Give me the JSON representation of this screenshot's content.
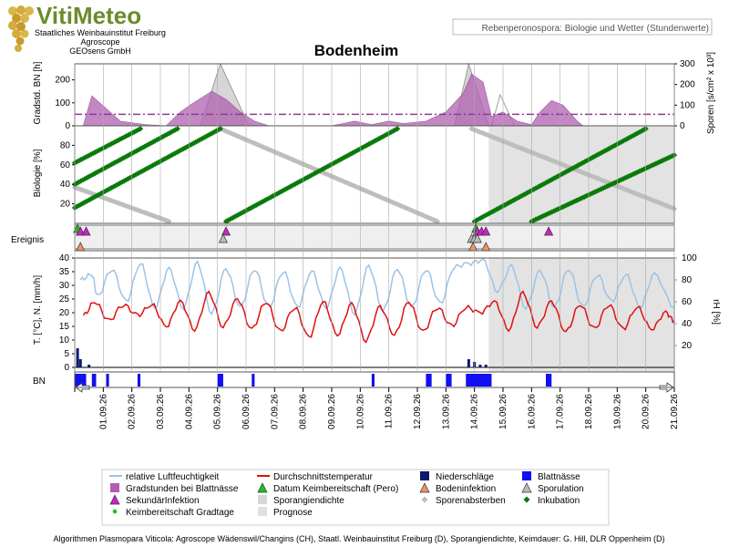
{
  "logo": {
    "brand": "VitiMeteo",
    "line1": "Staatliches Weinbauinstitut Freiburg",
    "line2": "Agroscope",
    "line3": "GEOsens GmbH"
  },
  "subtitle": "Rebenperonospora: Biologie und Wetter (Stundenwerte)",
  "footer": "Algorithmen Plasmopara Viticola: Agroscope Wädenswil/Changins (CH), Staatl. Weinbauinstitut Freiburg (D), Sporangiendichte, Keimdauer: G. Hill, DLR Oppenheim (D)",
  "colors": {
    "purple": "#8e3a91",
    "purple_fill": "#b060b0",
    "green": "#0a7a0a",
    "grey_points": "#bdbdbd",
    "red": "#e01010",
    "lightblue": "#9cc3e6",
    "navy": "#0a1a6e",
    "blue": "#1010f0",
    "prognose_fill": "#e0e0e0"
  },
  "chart_data": {
    "title": "Bodenheim",
    "type": "line",
    "x_dates": [
      "01.09.26",
      "02.09.26",
      "03.09.26",
      "04.09.26",
      "05.09.26",
      "06.09.26",
      "07.09.26",
      "08.09.26",
      "09.09.26",
      "10.09.26",
      "11.09.26",
      "12.09.26",
      "13.09.26",
      "14.09.26",
      "15.09.26",
      "16.09.26",
      "17.09.26",
      "18.09.26",
      "19.09.26",
      "20.09.26",
      "21.09.26"
    ],
    "x_range_days": [
      0,
      21
    ],
    "prognose_start_day": 14.5,
    "panels": {
      "sporulation": {
        "ylabel_left": "Gradstd. BN [h]",
        "ylabel_right": "Sporen [s/cm² x 10³]",
        "left_ticks": [
          "0",
          "100",
          "200"
        ],
        "left_range": [
          0,
          270
        ],
        "right_ticks": [
          "0",
          "100",
          "200",
          "300"
        ],
        "right_range": [
          0,
          300
        ],
        "threshold_left": 50,
        "gradstunden": [
          [
            0.3,
            0
          ],
          [
            0.6,
            130
          ],
          [
            1.6,
            20
          ],
          [
            2.5,
            5
          ],
          [
            3.2,
            0
          ],
          [
            3.7,
            60
          ],
          [
            4.1,
            95
          ],
          [
            4.8,
            150
          ],
          [
            5.3,
            115
          ],
          [
            5.8,
            60
          ],
          [
            6.3,
            20
          ],
          [
            6.8,
            0
          ],
          [
            9.0,
            0
          ],
          [
            9.8,
            20
          ],
          [
            10.4,
            5
          ],
          [
            11.0,
            20
          ],
          [
            11.5,
            10
          ],
          [
            12.3,
            20
          ],
          [
            13.0,
            60
          ],
          [
            13.6,
            140
          ],
          [
            13.9,
            225
          ],
          [
            14.3,
            190
          ],
          [
            14.6,
            40
          ],
          [
            15.0,
            60
          ],
          [
            15.5,
            20
          ],
          [
            16.0,
            5
          ],
          [
            16.3,
            60
          ],
          [
            16.7,
            110
          ],
          [
            17.1,
            90
          ],
          [
            17.6,
            20
          ],
          [
            17.8,
            0
          ]
        ],
        "sporangiendichte": [
          [
            4.4,
            0
          ],
          [
            5.1,
            300
          ],
          [
            6.1,
            0
          ],
          [
            13.3,
            0
          ],
          [
            13.8,
            300
          ],
          [
            14.5,
            0
          ]
        ],
        "prognose_triangles": [
          [
            14.6,
            0
          ],
          [
            14.9,
            150
          ],
          [
            15.4,
            0
          ]
        ]
      },
      "biologie": {
        "ylabel": "Biologie [%]",
        "ticks": [
          "20",
          "40",
          "60",
          "80"
        ],
        "range": [
          0,
          100
        ],
        "inkubation_lines": [
          {
            "start": 0.0,
            "start_pct": 62,
            "end": 2.3,
            "end_pct": 97
          },
          {
            "start": 0.0,
            "start_pct": 40,
            "end": 3.6,
            "end_pct": 97
          },
          {
            "start": 0.0,
            "start_pct": 16,
            "end": 5.1,
            "end_pct": 97
          },
          {
            "start": 5.3,
            "start_pct": 2,
            "end": 11.3,
            "end_pct": 97
          },
          {
            "start": 14.0,
            "start_pct": 2,
            "end": 20.0,
            "end_pct": 97
          },
          {
            "start": 16.0,
            "start_pct": 2,
            "end": 21.0,
            "end_pct": 70
          }
        ],
        "absterben_lines": [
          {
            "start": 0.0,
            "start_pct": 37,
            "end": 3.3,
            "end_pct": 2
          },
          {
            "start": 5.1,
            "start_pct": 97,
            "end": 12.7,
            "end_pct": 2
          },
          {
            "start": 13.9,
            "start_pct": 97,
            "end": 21.0,
            "end_pct": 15
          }
        ]
      },
      "ereignis": {
        "label": "Ereignis",
        "sekundaerinfektion": [
          0.2,
          0.4,
          5.3,
          14.1,
          14.25,
          14.4,
          16.6
        ],
        "sporulation": [
          5.2,
          13.9,
          14.0,
          14.1
        ],
        "bodeninfektion": [
          0.2,
          13.95,
          14.4
        ],
        "keimbereitschaft_pero": [
          0.1,
          14.05
        ]
      },
      "weather": {
        "ylabel_left": "T. [°C], N. [mm/h]",
        "ylabel_right": "rH [%]",
        "left_ticks": [
          "0",
          "5",
          "10",
          "15",
          "20",
          "25",
          "30",
          "35",
          "40"
        ],
        "left_range": [
          0,
          40
        ],
        "right_ticks": [
          "20",
          "40",
          "60",
          "80",
          "100"
        ],
        "right_range": [
          0,
          100
        ],
        "temp_daily": [
          [
            0.3,
            19
          ],
          [
            0.7,
            24
          ],
          [
            1.2,
            17
          ],
          [
            1.7,
            23
          ],
          [
            2.2,
            19
          ],
          [
            2.7,
            23
          ],
          [
            3.2,
            15
          ],
          [
            3.7,
            24
          ],
          [
            4.2,
            14
          ],
          [
            4.7,
            27
          ],
          [
            5.2,
            15
          ],
          [
            5.7,
            25
          ],
          [
            6.2,
            14
          ],
          [
            6.7,
            24
          ],
          [
            7.2,
            13
          ],
          [
            7.7,
            22
          ],
          [
            8.2,
            11
          ],
          [
            8.7,
            24
          ],
          [
            9.2,
            12
          ],
          [
            9.7,
            23
          ],
          [
            10.2,
            10
          ],
          [
            10.7,
            22
          ],
          [
            11.2,
            12
          ],
          [
            11.7,
            24
          ],
          [
            12.2,
            13
          ],
          [
            12.7,
            22
          ],
          [
            13.2,
            15
          ],
          [
            13.7,
            22
          ],
          [
            14.2,
            20
          ],
          [
            14.7,
            24
          ],
          [
            15.2,
            14
          ],
          [
            15.7,
            27
          ],
          [
            16.2,
            15
          ],
          [
            16.7,
            24
          ],
          [
            17.2,
            13
          ],
          [
            17.7,
            23
          ],
          [
            18.2,
            14
          ],
          [
            18.7,
            23
          ],
          [
            19.2,
            14
          ],
          [
            19.7,
            22
          ],
          [
            20.2,
            14
          ],
          [
            20.7,
            20
          ],
          [
            21.0,
            17
          ]
        ],
        "rh_daily": [
          [
            0.2,
            80
          ],
          [
            0.6,
            85
          ],
          [
            0.8,
            65
          ],
          [
            1.3,
            90
          ],
          [
            1.8,
            60
          ],
          [
            2.3,
            95
          ],
          [
            2.8,
            55
          ],
          [
            3.3,
            90
          ],
          [
            3.8,
            55
          ],
          [
            4.3,
            95
          ],
          [
            4.8,
            50
          ],
          [
            5.3,
            90
          ],
          [
            5.8,
            55
          ],
          [
            6.3,
            90
          ],
          [
            6.8,
            55
          ],
          [
            7.3,
            88
          ],
          [
            7.8,
            55
          ],
          [
            8.3,
            88
          ],
          [
            8.8,
            55
          ],
          [
            9.3,
            90
          ],
          [
            9.8,
            50
          ],
          [
            10.3,
            92
          ],
          [
            10.8,
            52
          ],
          [
            11.3,
            90
          ],
          [
            11.8,
            55
          ],
          [
            12.3,
            90
          ],
          [
            12.8,
            58
          ],
          [
            13.3,
            92
          ],
          [
            13.8,
            95
          ],
          [
            14.3,
            98
          ],
          [
            14.8,
            70
          ],
          [
            15.3,
            92
          ],
          [
            15.8,
            55
          ],
          [
            16.3,
            88
          ],
          [
            16.8,
            55
          ],
          [
            17.3,
            90
          ],
          [
            17.8,
            55
          ],
          [
            18.3,
            85
          ],
          [
            18.8,
            60
          ],
          [
            19.3,
            85
          ],
          [
            19.8,
            55
          ],
          [
            20.3,
            85
          ],
          [
            21.0,
            55
          ]
        ],
        "niederschlag": [
          [
            0.1,
            7
          ],
          [
            0.2,
            3
          ],
          [
            0.5,
            1
          ],
          [
            13.8,
            3
          ],
          [
            14.0,
            2
          ],
          [
            14.2,
            1
          ],
          [
            14.4,
            1
          ]
        ],
        "blattnaesse": [
          [
            0.0,
            0.4
          ],
          [
            0.6,
            0.75
          ],
          [
            1.1,
            1.2
          ],
          [
            2.2,
            2.3
          ],
          [
            5.0,
            5.2
          ],
          [
            6.2,
            6.3
          ],
          [
            10.4,
            10.5
          ],
          [
            12.3,
            12.5
          ],
          [
            13.0,
            13.2
          ],
          [
            13.7,
            14.6
          ],
          [
            16.5,
            16.7
          ]
        ]
      }
    },
    "bn_label": "BN",
    "legend": [
      {
        "key": "relative Luftfeuchtigkeit",
        "symbol": "line-lightblue"
      },
      {
        "key": "Durchschnittstemperatur",
        "symbol": "line-red"
      },
      {
        "key": "Niederschläge",
        "symbol": "square-navy"
      },
      {
        "key": "Blattnässe",
        "symbol": "square-blue"
      },
      {
        "key": "Gradstunden bei Blattnässe",
        "symbol": "square-purple"
      },
      {
        "key": "Datum Keimbereitschaft (Pero)",
        "symbol": "triangle-green"
      },
      {
        "key": "Bodeninfektion",
        "symbol": "triangle-orange"
      },
      {
        "key": "Sporulation",
        "symbol": "triangle-grey"
      },
      {
        "key": "SekundärInfektion",
        "symbol": "triangle-magenta"
      },
      {
        "key": "Sporangiendichte",
        "symbol": "square-lightgrey"
      },
      {
        "key": "Sporenabsterben",
        "symbol": "diamond-grey"
      },
      {
        "key": "Inkubation",
        "symbol": "diamond-green"
      },
      {
        "key": "Keimbereitschaft Gradtage",
        "symbol": "dot-green"
      },
      {
        "key": "Prognose",
        "symbol": "square-prognose"
      }
    ]
  }
}
